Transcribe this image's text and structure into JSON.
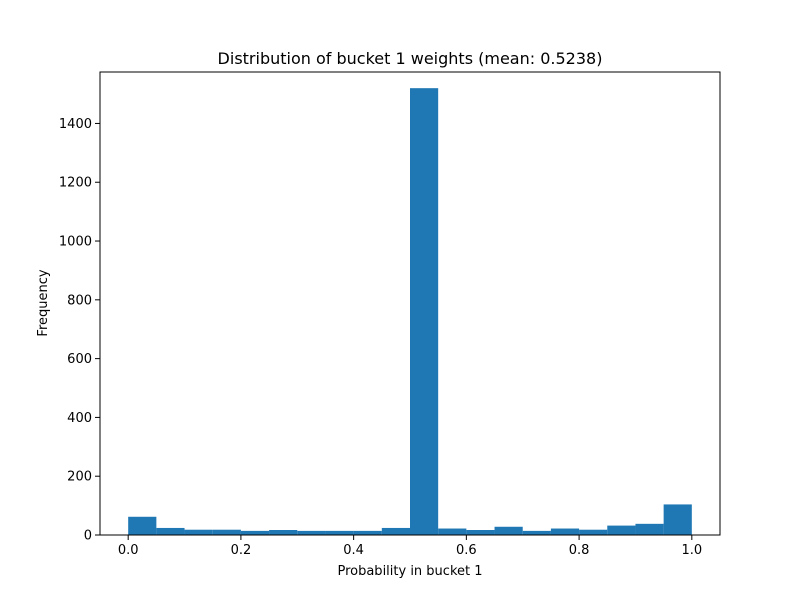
{
  "chart_data": {
    "type": "bar",
    "title": "Distribution of bucket 1 weights (mean: 0.5238)",
    "xlabel": "Probability in bucket 1",
    "ylabel": "Frequency",
    "xlim": [
      -0.05,
      1.05
    ],
    "ylim": [
      0,
      1575
    ],
    "xticks": [
      0.0,
      0.2,
      0.4,
      0.6,
      0.8,
      1.0
    ],
    "xtick_labels": [
      "0.0",
      "0.2",
      "0.4",
      "0.6",
      "0.8",
      "1.0"
    ],
    "yticks": [
      0,
      200,
      400,
      600,
      800,
      1000,
      1200,
      1400
    ],
    "ytick_labels": [
      "0",
      "200",
      "400",
      "600",
      "800",
      "1000",
      "1200",
      "1400"
    ],
    "bar_color": "#1f77b4",
    "bins": [
      {
        "x0": 0.0,
        "x1": 0.05,
        "value": 62
      },
      {
        "x0": 0.05,
        "x1": 0.1,
        "value": 24
      },
      {
        "x0": 0.1,
        "x1": 0.15,
        "value": 18
      },
      {
        "x0": 0.15,
        "x1": 0.2,
        "value": 18
      },
      {
        "x0": 0.2,
        "x1": 0.25,
        "value": 14
      },
      {
        "x0": 0.25,
        "x1": 0.3,
        "value": 17
      },
      {
        "x0": 0.3,
        "x1": 0.35,
        "value": 14
      },
      {
        "x0": 0.35,
        "x1": 0.4,
        "value": 14
      },
      {
        "x0": 0.4,
        "x1": 0.45,
        "value": 14
      },
      {
        "x0": 0.45,
        "x1": 0.5,
        "value": 24
      },
      {
        "x0": 0.5,
        "x1": 0.55,
        "value": 1520
      },
      {
        "x0": 0.55,
        "x1": 0.6,
        "value": 22
      },
      {
        "x0": 0.6,
        "x1": 0.65,
        "value": 17
      },
      {
        "x0": 0.65,
        "x1": 0.7,
        "value": 28
      },
      {
        "x0": 0.7,
        "x1": 0.75,
        "value": 14
      },
      {
        "x0": 0.75,
        "x1": 0.8,
        "value": 22
      },
      {
        "x0": 0.8,
        "x1": 0.85,
        "value": 18
      },
      {
        "x0": 0.85,
        "x1": 0.9,
        "value": 32
      },
      {
        "x0": 0.9,
        "x1": 0.95,
        "value": 38
      },
      {
        "x0": 0.95,
        "x1": 1.0,
        "value": 104
      }
    ]
  }
}
